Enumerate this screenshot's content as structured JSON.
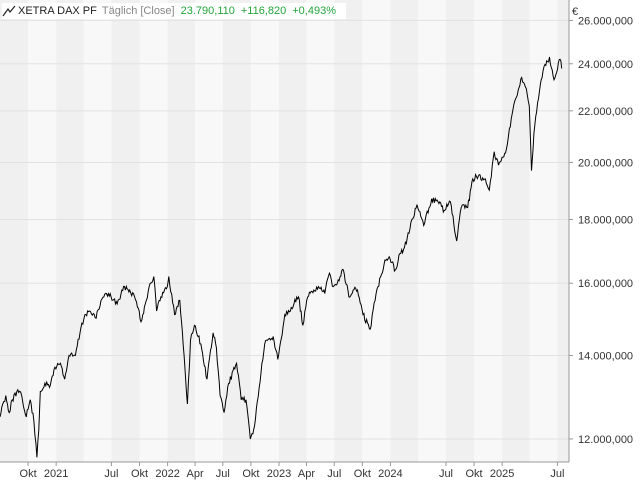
{
  "header": {
    "instrument": "XETRA DAX PF",
    "period": "Täglich [Close]",
    "last": "23.790,110",
    "change_abs": "+116,820",
    "change_pct": "+0,493%"
  },
  "currency": "€",
  "colors": {
    "line": "#000000",
    "positive": "#22a33a",
    "band_a": "#f0f0f0",
    "band_b": "#f8f8f8",
    "grid": "#e2e2e2",
    "axis": "#999999"
  },
  "chart_data": {
    "type": "line",
    "ylabel": "€",
    "yscale": "log",
    "ylim": [
      11500,
      27000
    ],
    "yticks": [
      {
        "value": 12000,
        "label": "12.000,000"
      },
      {
        "value": 14000,
        "label": "14.000,000"
      },
      {
        "value": 16000,
        "label": "16.000,000"
      },
      {
        "value": 18000,
        "label": "18.000,000"
      },
      {
        "value": 20000,
        "label": "20.000,000"
      },
      {
        "value": 22000,
        "label": "22.000,000"
      },
      {
        "value": 24000,
        "label": "24.000,000"
      },
      {
        "value": 26000,
        "label": "26.000,000"
      }
    ],
    "xlim": [
      "2020-07-01",
      "2025-08-08"
    ],
    "xticks": [
      {
        "date": "2020-10-01",
        "label": "Okt"
      },
      {
        "date": "2021-01-01",
        "label": "2021"
      },
      {
        "date": "2021-07-01",
        "label": "Jul"
      },
      {
        "date": "2021-10-01",
        "label": "Okt"
      },
      {
        "date": "2022-01-01",
        "label": "2022"
      },
      {
        "date": "2022-04-01",
        "label": "Apr"
      },
      {
        "date": "2022-07-01",
        "label": "Jul"
      },
      {
        "date": "2022-10-01",
        "label": "Okt"
      },
      {
        "date": "2023-01-01",
        "label": "2023"
      },
      {
        "date": "2023-04-01",
        "label": "Apr"
      },
      {
        "date": "2023-07-01",
        "label": "Jul"
      },
      {
        "date": "2023-10-01",
        "label": "Okt"
      },
      {
        "date": "2024-01-01",
        "label": "2024"
      },
      {
        "date": "2024-07-01",
        "label": "Jul"
      },
      {
        "date": "2024-10-01",
        "label": "Okt"
      },
      {
        "date": "2025-01-01",
        "label": "2025"
      },
      {
        "date": "2025-07-01",
        "label": "Jul"
      }
    ],
    "grid": true,
    "series": [
      {
        "points": [
          [
            "2020-07-01",
            12500
          ],
          [
            "2020-07-10",
            12800
          ],
          [
            "2020-07-20",
            13000
          ],
          [
            "2020-07-31",
            12600
          ],
          [
            "2020-08-10",
            12900
          ],
          [
            "2020-08-25",
            13100
          ],
          [
            "2020-09-10",
            13000
          ],
          [
            "2020-09-25",
            12500
          ],
          [
            "2020-10-08",
            12900
          ],
          [
            "2020-10-20",
            12400
          ],
          [
            "2020-10-30",
            11600
          ],
          [
            "2020-11-05",
            12200
          ],
          [
            "2020-11-10",
            13100
          ],
          [
            "2020-11-25",
            13300
          ],
          [
            "2020-12-10",
            13200
          ],
          [
            "2020-12-28",
            13700
          ],
          [
            "2021-01-15",
            13800
          ],
          [
            "2021-01-29",
            13400
          ],
          [
            "2021-02-12",
            14000
          ],
          [
            "2021-03-05",
            14000
          ],
          [
            "2021-03-20",
            14600
          ],
          [
            "2021-04-05",
            15100
          ],
          [
            "2021-04-20",
            15200
          ],
          [
            "2021-05-12",
            15000
          ],
          [
            "2021-05-28",
            15500
          ],
          [
            "2021-06-15",
            15700
          ],
          [
            "2021-06-30",
            15600
          ],
          [
            "2021-07-20",
            15400
          ],
          [
            "2021-08-13",
            15900
          ],
          [
            "2021-08-30",
            15800
          ],
          [
            "2021-09-15",
            15600
          ],
          [
            "2021-09-30",
            15200
          ],
          [
            "2021-10-06",
            14900
          ],
          [
            "2021-10-20",
            15400
          ],
          [
            "2021-11-05",
            16000
          ],
          [
            "2021-11-17",
            16200
          ],
          [
            "2021-11-26",
            15200
          ],
          [
            "2021-12-10",
            15600
          ],
          [
            "2021-12-31",
            15900
          ],
          [
            "2022-01-05",
            16200
          ],
          [
            "2022-01-24",
            15100
          ],
          [
            "2022-02-10",
            15500
          ],
          [
            "2022-02-24",
            14000
          ],
          [
            "2022-03-07",
            12800
          ],
          [
            "2022-03-17",
            14400
          ],
          [
            "2022-03-30",
            14800
          ],
          [
            "2022-04-20",
            14300
          ],
          [
            "2022-05-10",
            13400
          ],
          [
            "2022-05-30",
            14600
          ],
          [
            "2022-06-10",
            14200
          ],
          [
            "2022-06-22",
            13000
          ],
          [
            "2022-07-05",
            12600
          ],
          [
            "2022-07-20",
            13300
          ],
          [
            "2022-08-15",
            13800
          ],
          [
            "2022-08-30",
            12900
          ],
          [
            "2022-09-15",
            12900
          ],
          [
            "2022-09-29",
            12000
          ],
          [
            "2022-10-13",
            12300
          ],
          [
            "2022-10-28",
            13200
          ],
          [
            "2022-11-15",
            14300
          ],
          [
            "2022-12-13",
            14500
          ],
          [
            "2022-12-28",
            13900
          ],
          [
            "2023-01-20",
            15100
          ],
          [
            "2023-02-10",
            15300
          ],
          [
            "2023-03-06",
            15600
          ],
          [
            "2023-03-20",
            14800
          ],
          [
            "2023-04-05",
            15600
          ],
          [
            "2023-04-25",
            15800
          ],
          [
            "2023-05-10",
            15900
          ],
          [
            "2023-05-31",
            15700
          ],
          [
            "2023-06-15",
            16300
          ],
          [
            "2023-06-28",
            15900
          ],
          [
            "2023-07-14",
            16100
          ],
          [
            "2023-07-31",
            16400
          ],
          [
            "2023-08-18",
            15600
          ],
          [
            "2023-09-01",
            15800
          ],
          [
            "2023-09-15",
            15800
          ],
          [
            "2023-10-03",
            15100
          ],
          [
            "2023-10-27",
            14700
          ],
          [
            "2023-11-15",
            15700
          ],
          [
            "2023-11-30",
            16200
          ],
          [
            "2023-12-14",
            16700
          ],
          [
            "2023-12-28",
            16800
          ],
          [
            "2024-01-17",
            16400
          ],
          [
            "2024-02-01",
            16900
          ],
          [
            "2024-02-16",
            17100
          ],
          [
            "2024-03-05",
            17700
          ],
          [
            "2024-03-28",
            18500
          ],
          [
            "2024-04-19",
            17800
          ],
          [
            "2024-05-15",
            18700
          ],
          [
            "2024-06-05",
            18600
          ],
          [
            "2024-06-25",
            18300
          ],
          [
            "2024-07-15",
            18600
          ],
          [
            "2024-08-05",
            17300
          ],
          [
            "2024-08-20",
            18400
          ],
          [
            "2024-09-10",
            18400
          ],
          [
            "2024-09-27",
            19400
          ],
          [
            "2024-10-15",
            19500
          ],
          [
            "2024-11-07",
            19400
          ],
          [
            "2024-11-20",
            19000
          ],
          [
            "2024-12-06",
            20400
          ],
          [
            "2024-12-20",
            19900
          ],
          [
            "2025-01-15",
            20500
          ],
          [
            "2025-01-31",
            21700
          ],
          [
            "2025-02-14",
            22500
          ],
          [
            "2025-03-06",
            23400
          ],
          [
            "2025-03-18",
            23000
          ],
          [
            "2025-03-31",
            22200
          ],
          [
            "2025-04-07",
            19700
          ],
          [
            "2025-04-15",
            21100
          ],
          [
            "2025-04-30",
            22500
          ],
          [
            "2025-05-15",
            23700
          ],
          [
            "2025-06-05",
            24300
          ],
          [
            "2025-06-20",
            23300
          ],
          [
            "2025-07-10",
            24200
          ],
          [
            "2025-07-15",
            23790
          ]
        ]
      }
    ]
  }
}
